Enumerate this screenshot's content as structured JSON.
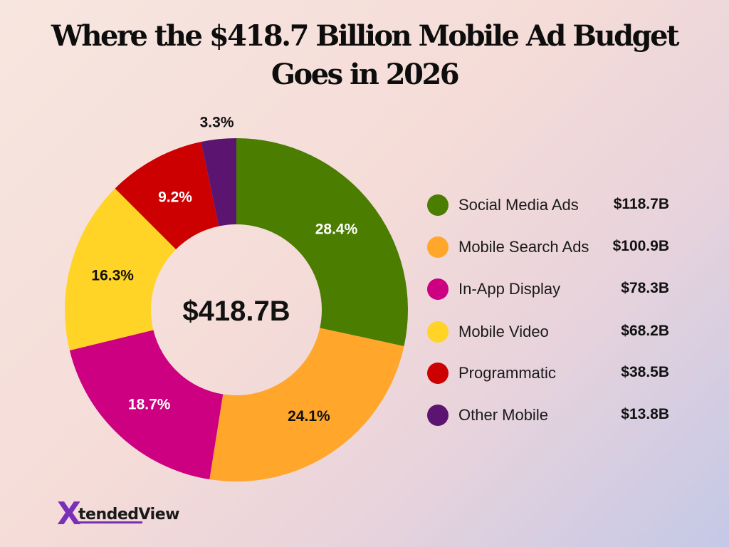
{
  "title": "Where the $418.7 Billion Mobile Ad Budget Goes in 2026",
  "chart_data": {
    "type": "pie",
    "donut": true,
    "center_label": "$418.7B",
    "categories": [
      "Social Media Ads",
      "Mobile Search Ads",
      "In-App Display",
      "Mobile Video",
      "Programmatic",
      "Other Mobile"
    ],
    "values": [
      28.4,
      24.1,
      18.7,
      16.3,
      9.2,
      3.3
    ],
    "percent_labels": [
      "28.4%",
      "24.1%",
      "18.7%",
      "16.3%",
      "9.2%",
      "3.3%"
    ],
    "amounts": [
      "$118.7B",
      "$100.9B",
      "$78.3B",
      "$68.2B",
      "$38.5B",
      "$13.8B"
    ],
    "colors": [
      "#4a7d00",
      "#ffa62b",
      "#cc0080",
      "#ffd427",
      "#cc0000",
      "#5b1470"
    ],
    "legend_position": "right"
  },
  "logo": {
    "mark": "X",
    "text": "tendedView"
  }
}
